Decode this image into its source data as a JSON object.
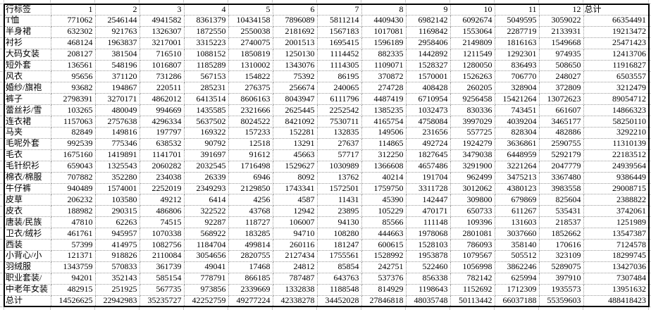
{
  "table": {
    "corner_label": "行标签",
    "month_columns": [
      "1",
      "2",
      "3",
      "4",
      "5",
      "6",
      "7",
      "8",
      "9",
      "10",
      "11",
      "12"
    ],
    "total_column_label": "总计",
    "rows": [
      {
        "label": "T恤",
        "values": [
          771062,
          2546144,
          4941582,
          8361379,
          10434158,
          7896089,
          5811214,
          4409430,
          6982142,
          6092674,
          5049595,
          3059022
        ],
        "total": 66354491
      },
      {
        "label": "半身裙",
        "values": [
          632302,
          921763,
          1326307,
          1872550,
          2550038,
          2181692,
          1567183,
          1017081,
          1169842,
          1553064,
          2287719,
          2133931
        ],
        "total": 19213472
      },
      {
        "label": "衬衫",
        "values": [
          468124,
          1963837,
          3217001,
          3315223,
          2740075,
          2001513,
          1695415,
          1596189,
          2958406,
          2149809,
          1816163,
          1549668
        ],
        "total": 25471423
      },
      {
        "label": "大码女装",
        "values": [
          208127,
          381504,
          716510,
          1088152,
          1850819,
          1250130,
          1114452,
          882335,
          1442892,
          1211549,
          1292301,
          974935
        ],
        "total": 12413706
      },
      {
        "label": "短外套",
        "values": [
          136561,
          548196,
          1016807,
          1185289,
          1310002,
          1343076,
          1114305,
          1109071,
          1528327,
          1280050,
          836493,
          508650
        ],
        "total": 11916827
      },
      {
        "label": "风衣",
        "values": [
          95656,
          371120,
          731286,
          567153,
          154822,
          75392,
          86195,
          370872,
          1570001,
          1526263,
          706770,
          248027
        ],
        "total": 6503557
      },
      {
        "label": "婚纱/旗袍",
        "values": [
          93682,
          194867,
          220511,
          285231,
          276375,
          256674,
          240065,
          274728,
          408428,
          260205,
          328904,
          372809
        ],
        "total": 3212479
      },
      {
        "label": "裤子",
        "values": [
          2798391,
          3270171,
          4862012,
          6413514,
          8606163,
          8043947,
          6111796,
          4487419,
          6710954,
          9256458,
          15421264,
          13072623
        ],
        "total": 89054712
      },
      {
        "label": "蕾丝衫/雪",
        "values": [
          103265,
          480049,
          994669,
          1435585,
          2321666,
          2625445,
          2252542,
          1385235,
          1032473,
          830336,
          743451,
          661607
        ],
        "total": 14866323
      },
      {
        "label": "连衣裙",
        "values": [
          1157063,
          2757638,
          4296334,
          5637502,
          8024522,
          8421092,
          7530711,
          4165754,
          4758084,
          3997029,
          4039204,
          3465177
        ],
        "total": 58250110
      },
      {
        "label": "马夹",
        "values": [
          82849,
          149816,
          197797,
          169322,
          157233,
          152281,
          132835,
          149506,
          231656,
          557725,
          828304,
          482886
        ],
        "total": 3292210
      },
      {
        "label": "毛呢外套",
        "values": [
          992539,
          775346,
          638532,
          90792,
          12518,
          13291,
          27637,
          114865,
          492724,
          1924279,
          3636861,
          2590755
        ],
        "total": 11310139
      },
      {
        "label": "毛衣",
        "values": [
          1675160,
          1419891,
          1141701,
          391697,
          91612,
          45663,
          57717,
          312250,
          1827645,
          3479038,
          6448959,
          5292179
        ],
        "total": 22183512
      },
      {
        "label": "毛针织衫",
        "values": [
          659043,
          1325543,
          2060282,
          2032545,
          1716498,
          1529627,
          1030989,
          1366608,
          4657486,
          3291900,
          3221264,
          2047779
        ],
        "total": 24939564
      },
      {
        "label": "棉衣/棉服",
        "values": [
          707882,
          352280,
          234038,
          26339,
          6946,
          8092,
          13762,
          40214,
          191704,
          962499,
          3475213,
          3367480
        ],
        "total": 9386449
      },
      {
        "label": "牛仔裤",
        "values": [
          940489,
          1574001,
          2252019,
          2349293,
          2129850,
          1743341,
          1572501,
          1759750,
          3311728,
          3012062,
          4380123,
          3983558
        ],
        "total": 29008715
      },
      {
        "label": "皮草",
        "values": [
          206232,
          103580,
          49212,
          6414,
          4256,
          4587,
          11431,
          45390,
          142447,
          309800,
          679869,
          825604
        ],
        "total": 2388822
      },
      {
        "label": "皮衣",
        "values": [
          188982,
          290315,
          486806,
          322522,
          43768,
          12942,
          23895,
          105229,
          470171,
          650733,
          611267,
          535431
        ],
        "total": 3742061
      },
      {
        "label": "唐装/民族",
        "values": [
          47810,
          62263,
          74515,
          92287,
          118727,
          106007,
          94130,
          85566,
          111148,
          109396,
          131603,
          218537
        ],
        "total": 1251989
      },
      {
        "label": "卫衣/绒衫",
        "values": [
          461761,
          945957,
          1070338,
          568922,
          183285,
          94710,
          108280,
          444663,
          1978068,
          2801081,
          3037660,
          1852662
        ],
        "total": 13547387
      },
      {
        "label": "西装",
        "values": [
          57399,
          414975,
          1082756,
          1184704,
          499814,
          260116,
          181247,
          600615,
          1528103,
          786093,
          358140,
          170616
        ],
        "total": 7124578
      },
      {
        "label": "小背心/小",
        "values": [
          121371,
          918826,
          2110084,
          3054656,
          2820755,
          2127434,
          1755561,
          1528992,
          1953878,
          1079567,
          505512,
          323109
        ],
        "total": 18299745
      },
      {
        "label": "羽绒服",
        "values": [
          1343759,
          570833,
          361739,
          49041,
          17468,
          24812,
          85854,
          242751,
          522460,
          1056998,
          3862246,
          5289075
        ],
        "total": 13427036
      },
      {
        "label": "职业套装/",
        "values": [
          94201,
          352143,
          585154,
          778791,
          866185,
          787487,
          643763,
          537376,
          856338,
          782142,
          625994,
          397910
        ],
        "total": 7307484
      },
      {
        "label": "中老年女装",
        "values": [
          482915,
          251925,
          567735,
          973856,
          2339669,
          1332838,
          1188548,
          814929,
          1198643,
          1152692,
          1712309,
          1935573
        ],
        "total": 13951632
      }
    ],
    "grand_total": {
      "label": "总计",
      "values": [
        14526625,
        22942983,
        35235727,
        42252759,
        49277224,
        42338278,
        34452028,
        27846818,
        48035748,
        50113442,
        66037188,
        55359603
      ],
      "total": 488418423
    }
  },
  "colors": {
    "table_border": "#000000",
    "inner_gridline": "#9a9a9a",
    "outside_gridline": "#c9c9c9",
    "background": "#ffffff",
    "text": "#000000"
  }
}
